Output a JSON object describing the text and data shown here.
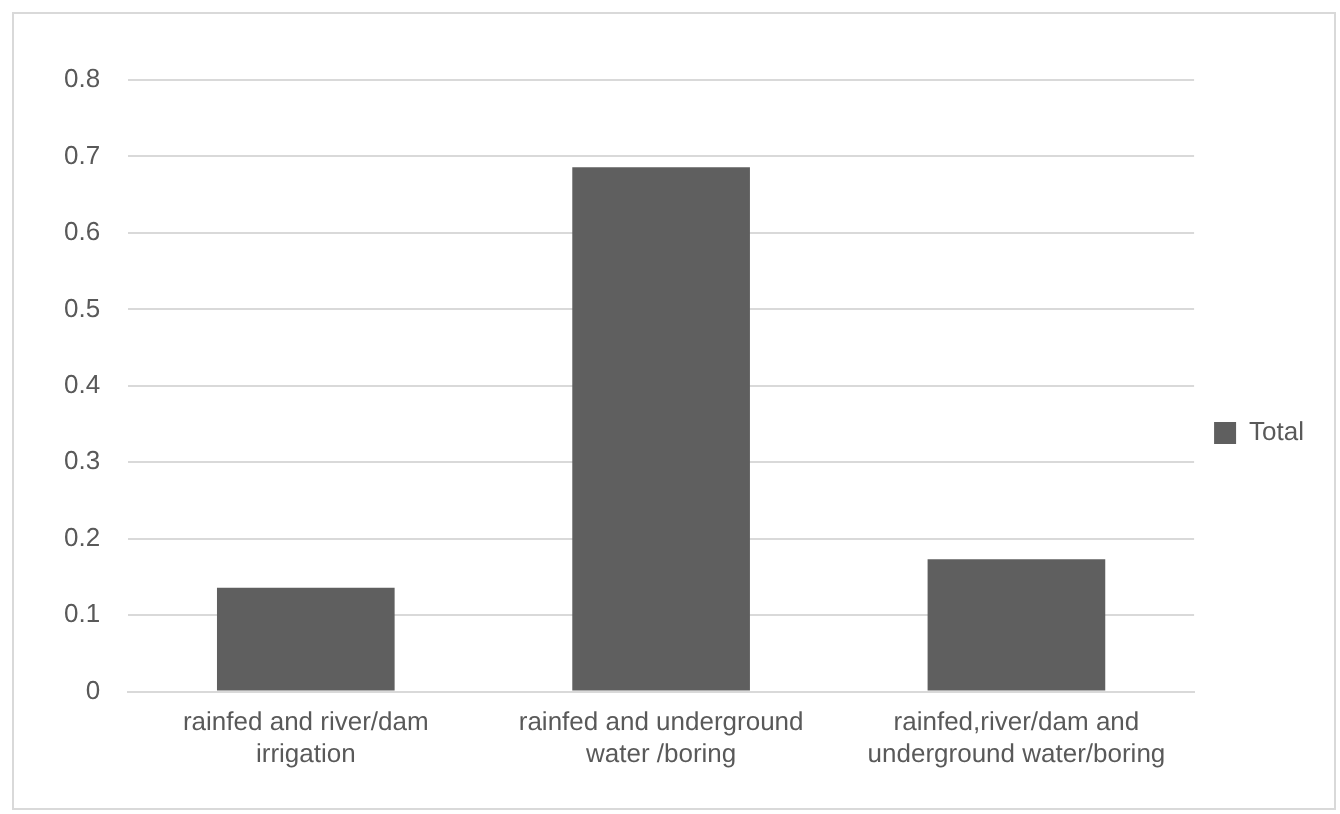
{
  "chart_data": {
    "type": "bar",
    "categories": [
      "rainfed and river/dam irrigation",
      "rainfed and underground water /boring",
      "rainfed,river/dam and underground water/boring"
    ],
    "series": [
      {
        "name": "Total",
        "color": "#5f5f5f",
        "values": [
          0.136,
          0.686,
          0.173
        ]
      }
    ],
    "ylim": [
      0,
      0.8
    ],
    "yticks": [
      0,
      0.1,
      0.2,
      0.3,
      0.4,
      0.5,
      0.6,
      0.7,
      0.8
    ],
    "grid": "y",
    "legend": "right"
  }
}
